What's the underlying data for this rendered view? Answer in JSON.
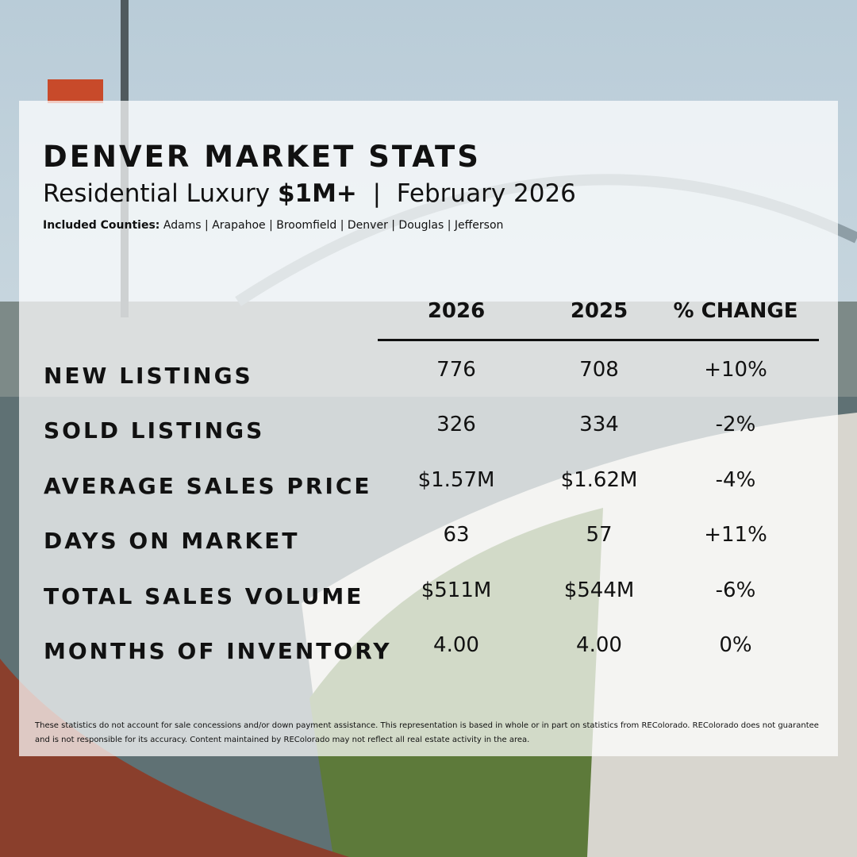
{
  "header": {
    "title": "DENVER MARKET STATS",
    "subtitle_prefix": "Residential Luxury",
    "subtitle_highlight": "$1M+",
    "subtitle_separator": "|",
    "subtitle_date": "February 2026",
    "counties_label": "Included Counties:",
    "counties": "Adams | Arapahoe | Broomfield | Denver | Douglas | Jefferson"
  },
  "table": {
    "columns": [
      "2026",
      "2025",
      "% CHANGE"
    ],
    "rows": [
      [
        "NEW LISTINGS",
        "776",
        "708",
        "+10%"
      ],
      [
        "SOLD LISTINGS",
        "326",
        "334",
        "-2%"
      ],
      [
        "AVERAGE SALES PRICE",
        "$1.57M",
        "$1.62M",
        "-4%"
      ],
      [
        "DAYS ON MARKET",
        "63",
        "57",
        "+11%"
      ],
      [
        "TOTAL SALES VOLUME",
        "$511M",
        "$544M",
        "-6%"
      ],
      [
        "MONTHS OF INVENTORY",
        "4.00",
        "4.00",
        "0%"
      ]
    ]
  },
  "footnote": "These statistics do not account for sale concessions and/or down payment assistance. This representation is based in whole or in part on statistics from REColorado. REColorado does not guarantee and is not responsible for its accuracy. Content maintained by REColorado may not reflect all real estate activity in the area."
}
